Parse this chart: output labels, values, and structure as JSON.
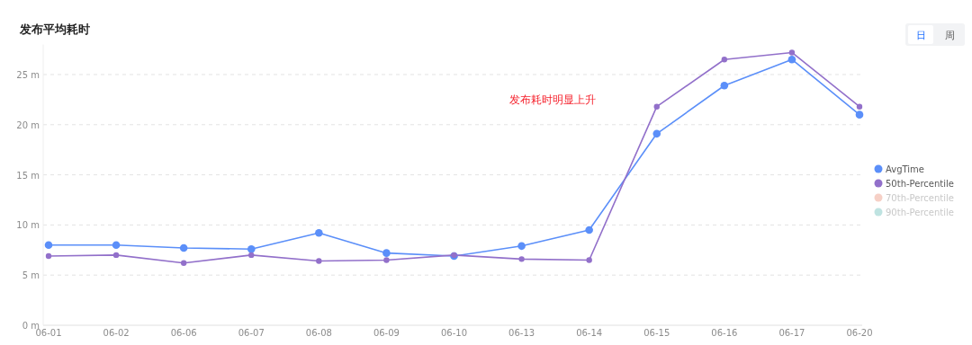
{
  "chart_data": {
    "type": "line",
    "title": "发布平均耗时",
    "categories": [
      "06-01",
      "06-02",
      "06-06",
      "06-07",
      "06-08",
      "06-09",
      "06-10",
      "06-13",
      "06-14",
      "06-15",
      "06-16",
      "06-17",
      "06-20"
    ],
    "series": [
      {
        "name": "AvgTime",
        "color": "#5b8ff9",
        "values": [
          8.0,
          8.0,
          7.7,
          7.6,
          9.2,
          7.2,
          6.9,
          7.9,
          9.5,
          19.1,
          23.9,
          26.5,
          21.0
        ]
      },
      {
        "name": "50th-Percentile",
        "color": "#9270ca",
        "values": [
          6.9,
          7.0,
          6.2,
          7.0,
          6.4,
          6.5,
          7.0,
          6.6,
          6.5,
          21.8,
          26.5,
          27.2,
          21.8
        ]
      },
      {
        "name": "70th-Percentile",
        "color": "#f6d0c6",
        "values": [
          null,
          null,
          null,
          null,
          null,
          null,
          null,
          null,
          null,
          null,
          null,
          null,
          null
        ]
      },
      {
        "name": "90th-Percentile",
        "color": "#bfe3e1",
        "values": [
          null,
          null,
          null,
          null,
          null,
          null,
          null,
          null,
          null,
          null,
          null,
          null,
          null
        ]
      }
    ],
    "ylim": [
      0,
      28
    ],
    "yticks": [
      {
        "value": 0,
        "label": "0 m"
      },
      {
        "value": 5,
        "label": "5 m"
      },
      {
        "value": 10,
        "label": "10 m"
      },
      {
        "value": 15,
        "label": "15 m"
      },
      {
        "value": 20,
        "label": "20 m"
      },
      {
        "value": 25,
        "label": "25 m"
      }
    ],
    "grid": "y",
    "legend": "right",
    "marker": "circle",
    "line_style": "solid",
    "annotations": [
      "发布耗时明显上升",
      "日",
      "周"
    ]
  }
}
